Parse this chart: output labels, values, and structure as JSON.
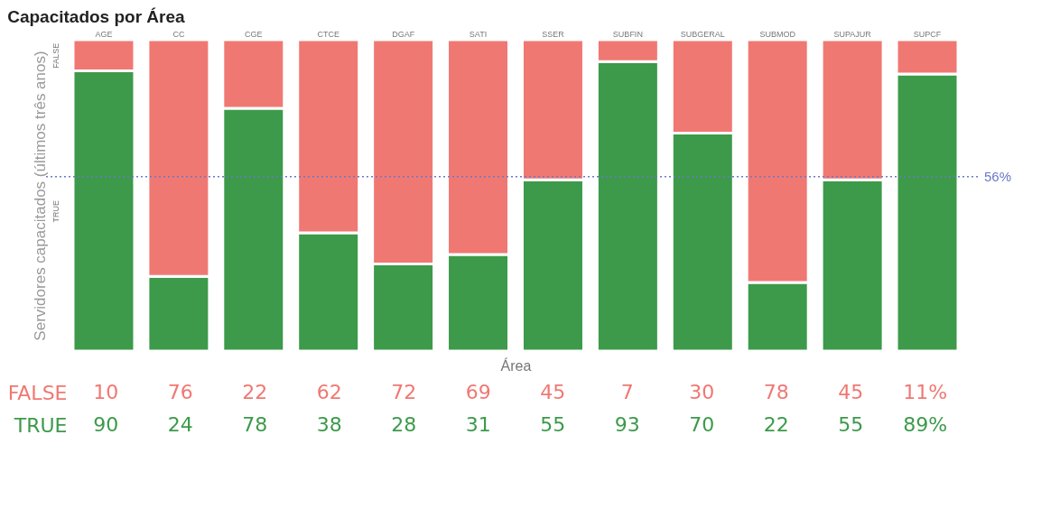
{
  "chart_data": {
    "type": "bar",
    "title": "Capacitados por Área",
    "xlabel": "Área",
    "ylabel": "Servidores capacitados (últimos três anos)",
    "categories": [
      "AGE",
      "CC",
      "CGE",
      "CTCE",
      "DGAF",
      "SATI",
      "SSER",
      "SUBFIN",
      "SUBGERAL",
      "SUBMOD",
      "SUPAJUR",
      "SUPCF"
    ],
    "stacked": true,
    "ylim": [
      0,
      100
    ],
    "grid": false,
    "legend": false,
    "series": [
      {
        "name": "TRUE",
        "color": "#3c9a4a",
        "values": [
          90,
          24,
          78,
          38,
          28,
          31,
          55,
          93,
          70,
          22,
          55,
          89
        ],
        "value_labels": [
          "90",
          "24",
          "78",
          "38",
          "28",
          "31",
          "55",
          "93",
          "70",
          "22",
          "55",
          "89%"
        ]
      },
      {
        "name": "FALSE",
        "color": "#f07873",
        "values": [
          10,
          76,
          22,
          62,
          72,
          69,
          45,
          7,
          30,
          78,
          45,
          11
        ],
        "value_labels": [
          "10",
          "76",
          "22",
          "62",
          "72",
          "69",
          "45",
          "7",
          "30",
          "78",
          "45",
          "11%"
        ]
      }
    ],
    "ref_lines": [
      {
        "axis": "y",
        "value": 56,
        "label": "56%",
        "color": "#6a78c8",
        "line_style": "dotted"
      }
    ]
  }
}
